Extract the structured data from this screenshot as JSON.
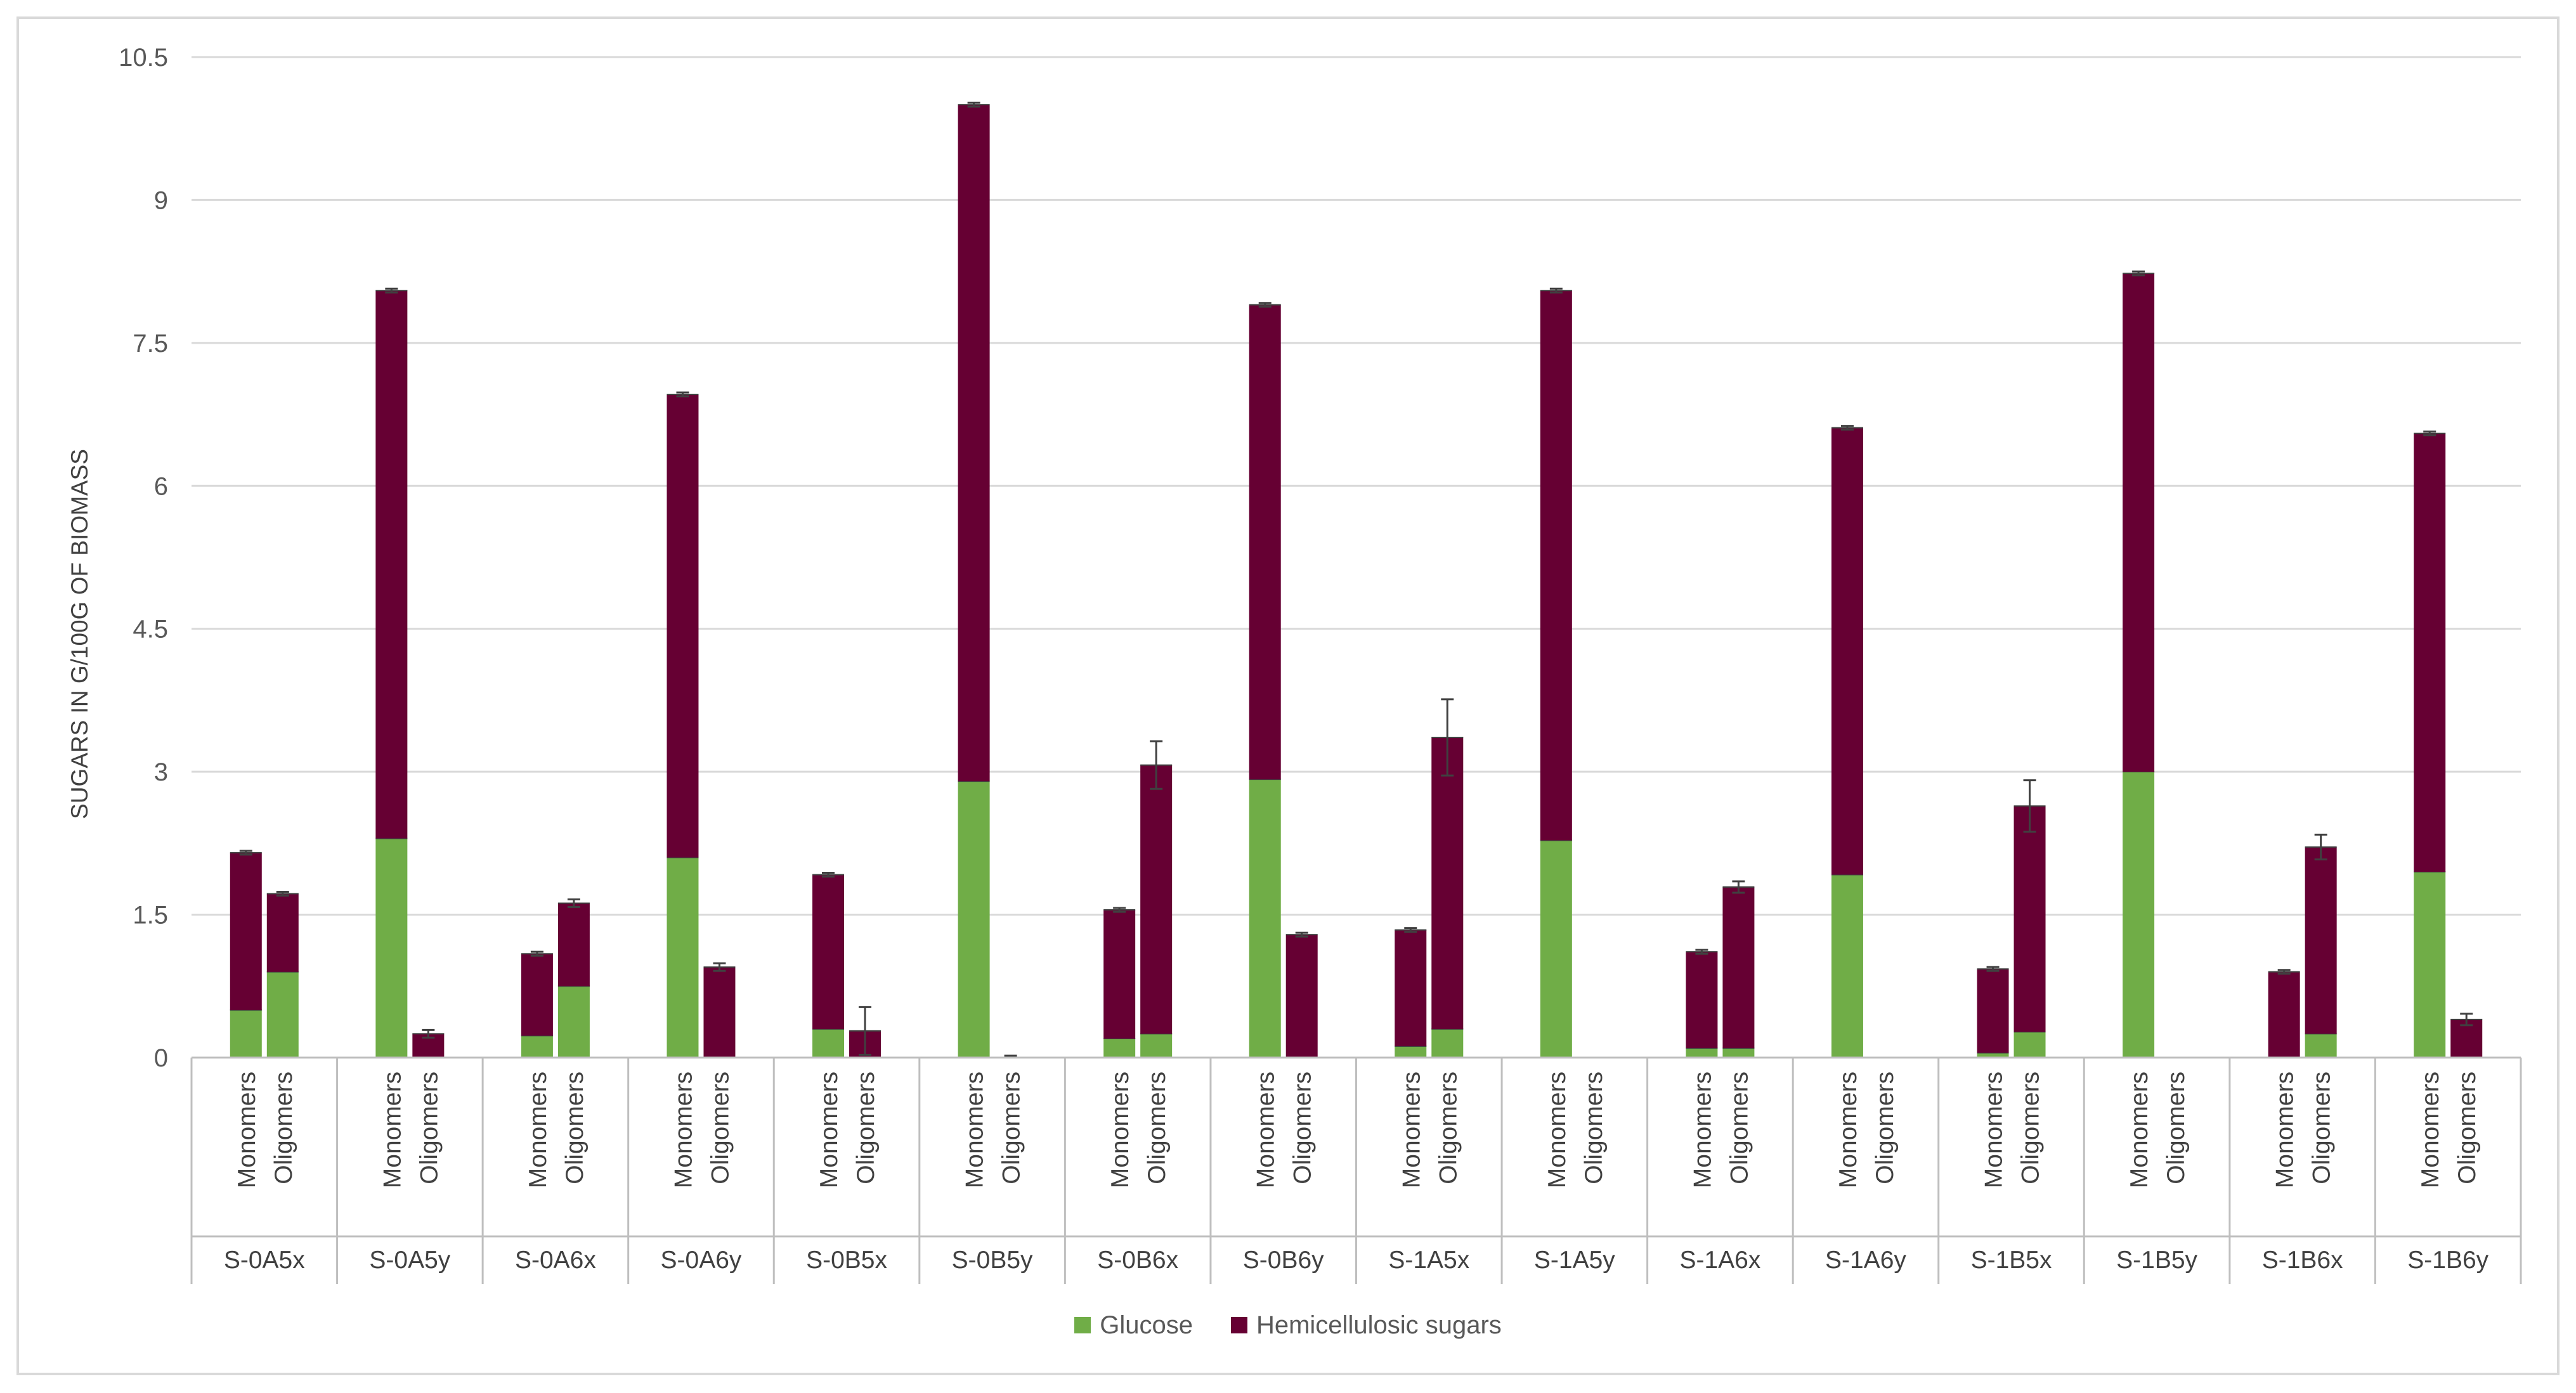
{
  "chart_data": {
    "type": "bar",
    "stacked": true,
    "title": "",
    "ylabel": "SUGARS IN G/100G OF BIOMASS",
    "xlabel": "",
    "ylim": [
      0,
      10.5
    ],
    "yticks": [
      "0",
      "1.5",
      "3",
      "4.5",
      "6",
      "7.5",
      "9",
      "10.5"
    ],
    "grid": true,
    "legend_position": "bottom",
    "sub_categories": [
      "Monomers",
      "Oligomers"
    ],
    "groups": [
      "S-0A5x",
      "S-0A5y",
      "S-0A6x",
      "S-0A6y",
      "S-0B5x",
      "S-0B5y",
      "S-0B6x",
      "S-0B6y",
      "S-1A5x",
      "S-1A5y",
      "S-1A6x",
      "S-1A6y",
      "S-1B5x",
      "S-1B5y",
      "S-1B6x",
      "S-1B6y"
    ],
    "series": [
      {
        "name": "Glucose",
        "color": "#70ad47",
        "values": [
          0.5,
          0.9,
          2.3,
          0.0,
          0.23,
          0.75,
          2.1,
          0.0,
          0.3,
          0.0,
          2.9,
          0.0,
          0.2,
          0.25,
          2.92,
          0.0,
          0.12,
          0.3,
          2.28,
          0.0,
          0.1,
          0.1,
          1.92,
          0.0,
          0.05,
          0.27,
          3.0,
          0.0,
          0.0,
          0.25,
          1.95,
          0.0
        ]
      },
      {
        "name": "Hemicellulosic sugars",
        "color": "#660033",
        "values": [
          1.65,
          0.82,
          5.75,
          0.25,
          0.86,
          0.87,
          4.86,
          0.95,
          1.62,
          0.28,
          7.1,
          0.0,
          1.35,
          2.82,
          4.98,
          1.29,
          1.22,
          3.06,
          5.77,
          0.0,
          1.01,
          1.69,
          4.69,
          0.0,
          0.88,
          2.37,
          5.23,
          0.0,
          0.9,
          1.96,
          4.6,
          0.4
        ]
      }
    ],
    "error_bars": [
      0.02,
      0.02,
      0.02,
      0.04,
      0.02,
      0.04,
      0.02,
      0.04,
      0.02,
      0.25,
      0.02,
      0.02,
      0.02,
      0.25,
      0.02,
      0.02,
      0.02,
      0.4,
      0.02,
      0.0,
      0.02,
      0.06,
      0.02,
      0.0,
      0.02,
      0.27,
      0.02,
      0.0,
      0.02,
      0.13,
      0.02,
      0.06
    ]
  }
}
